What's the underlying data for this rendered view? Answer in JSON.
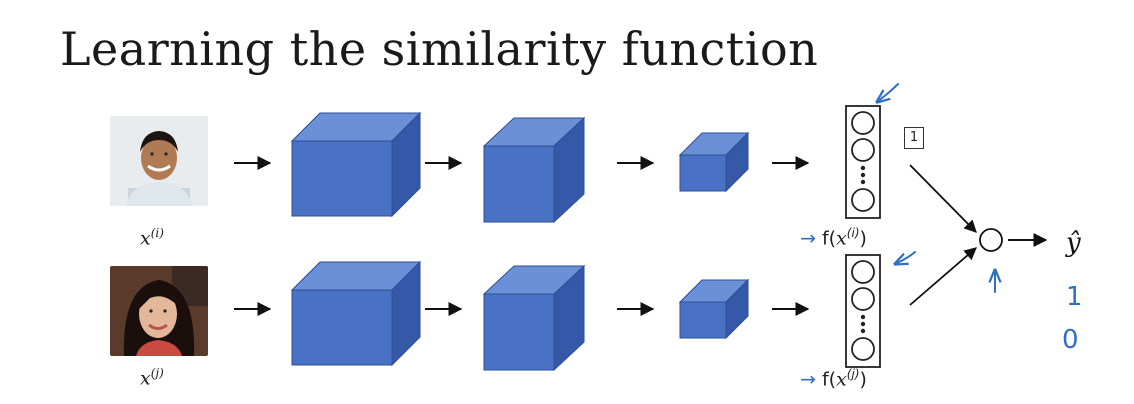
{
  "title": "Learning the similarity function",
  "inputs": [
    {
      "label_base": "x",
      "label_sup": "(i)",
      "feature_base": "f(",
      "feature_x": "x",
      "feature_sup": "(i)",
      "feature_close": ")"
    },
    {
      "label_base": "x",
      "label_sup": "(j)",
      "feature_base": "f(",
      "feature_x": "x",
      "feature_sup": "(j)",
      "feature_close": ")"
    }
  ],
  "box_number": "1",
  "output_label": "ŷ",
  "handwritten": {
    "feature_arrow": "→",
    "output_values": [
      "1",
      "0"
    ]
  },
  "colors": {
    "cube_front": "#4a72c4",
    "cube_top": "#6a90d8",
    "cube_side": "#3559a8",
    "ink": "#111111",
    "annotation": "#2f6fc4"
  },
  "icons": [
    "face-photo-male",
    "face-photo-female",
    "arrow-icon",
    "neuron-icon"
  ]
}
